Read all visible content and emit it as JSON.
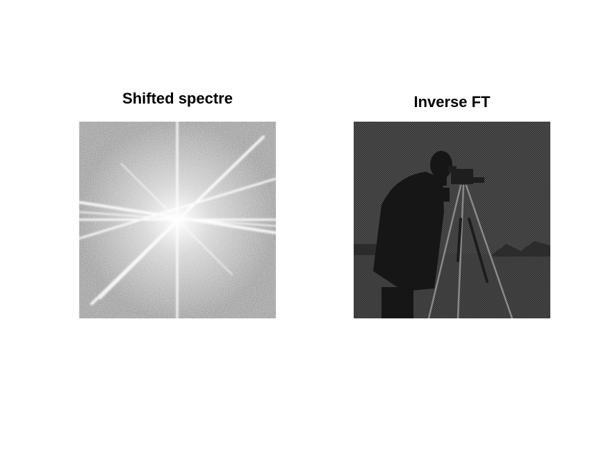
{
  "panels": [
    {
      "title": "Shifted spectre",
      "image": "fourier-magnitude-spectrum"
    },
    {
      "title": "Inverse FT",
      "image": "grayscale-cameraman-photo"
    }
  ]
}
